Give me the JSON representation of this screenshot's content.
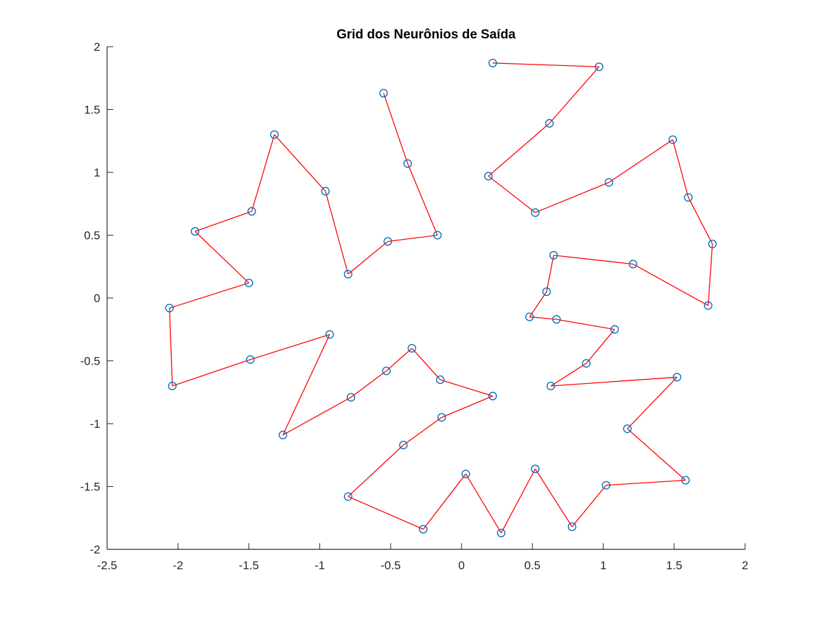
{
  "chart_data": {
    "type": "line",
    "title": "Grid dos Neurônios de Saída",
    "xlabel": "",
    "ylabel": "",
    "xlim": [
      -2.5,
      2
    ],
    "ylim": [
      -2,
      2
    ],
    "xticks": [
      -2.5,
      -2,
      -1.5,
      -1,
      -0.5,
      0,
      0.5,
      1,
      1.5,
      2
    ],
    "xtick_labels": [
      "-2.5",
      "-2",
      "-1.5",
      "-1",
      "-0.5",
      "0",
      "0.5",
      "1",
      "1.5",
      "2"
    ],
    "yticks": [
      -2,
      -1.5,
      -1,
      -0.5,
      0,
      0.5,
      1,
      1.5,
      2
    ],
    "ytick_labels": [
      "-2",
      "-1.5",
      "-1",
      "-0.5",
      "0",
      "0.5",
      "1",
      "1.5",
      "2"
    ],
    "grid": false,
    "legend": false,
    "series": [
      {
        "role": "neuron-path",
        "style": "line",
        "color": "#ff0000",
        "x": [
          -0.55,
          -0.38,
          -0.17,
          -0.52,
          -0.8,
          -0.96,
          -1.32,
          -1.48,
          -1.88,
          -1.5,
          -2.06,
          -2.04,
          -1.49,
          -0.93,
          -1.26,
          -0.78,
          -0.53,
          -0.35,
          -0.15,
          0.22,
          -0.14,
          -0.41,
          -0.8,
          -0.27,
          0.03,
          0.28,
          0.52,
          0.78,
          1.02,
          1.58,
          1.17,
          1.52,
          0.63,
          0.88,
          1.08,
          0.67,
          0.48,
          0.6,
          0.65,
          1.21,
          1.74,
          1.77,
          1.6,
          1.49,
          1.04,
          0.52,
          0.19,
          0.62,
          0.97,
          0.22
        ],
        "y": [
          1.63,
          1.07,
          0.5,
          0.45,
          0.19,
          0.85,
          1.3,
          0.69,
          0.53,
          0.12,
          -0.08,
          -0.7,
          -0.49,
          -0.29,
          -1.09,
          -0.79,
          -0.58,
          -0.4,
          -0.65,
          -0.78,
          -0.95,
          -1.17,
          -1.58,
          -1.84,
          -1.4,
          -1.87,
          -1.36,
          -1.82,
          -1.49,
          -1.45,
          -1.04,
          -0.63,
          -0.7,
          -0.52,
          -0.25,
          -0.17,
          -0.15,
          0.05,
          0.34,
          0.27,
          -0.06,
          0.43,
          0.8,
          1.26,
          0.92,
          0.68,
          0.97,
          1.39,
          1.84,
          1.87
        ]
      },
      {
        "role": "neuron-markers",
        "style": "scatter",
        "marker": "circle",
        "color": "#0072bd",
        "same_points_as": "neuron-path"
      }
    ]
  }
}
